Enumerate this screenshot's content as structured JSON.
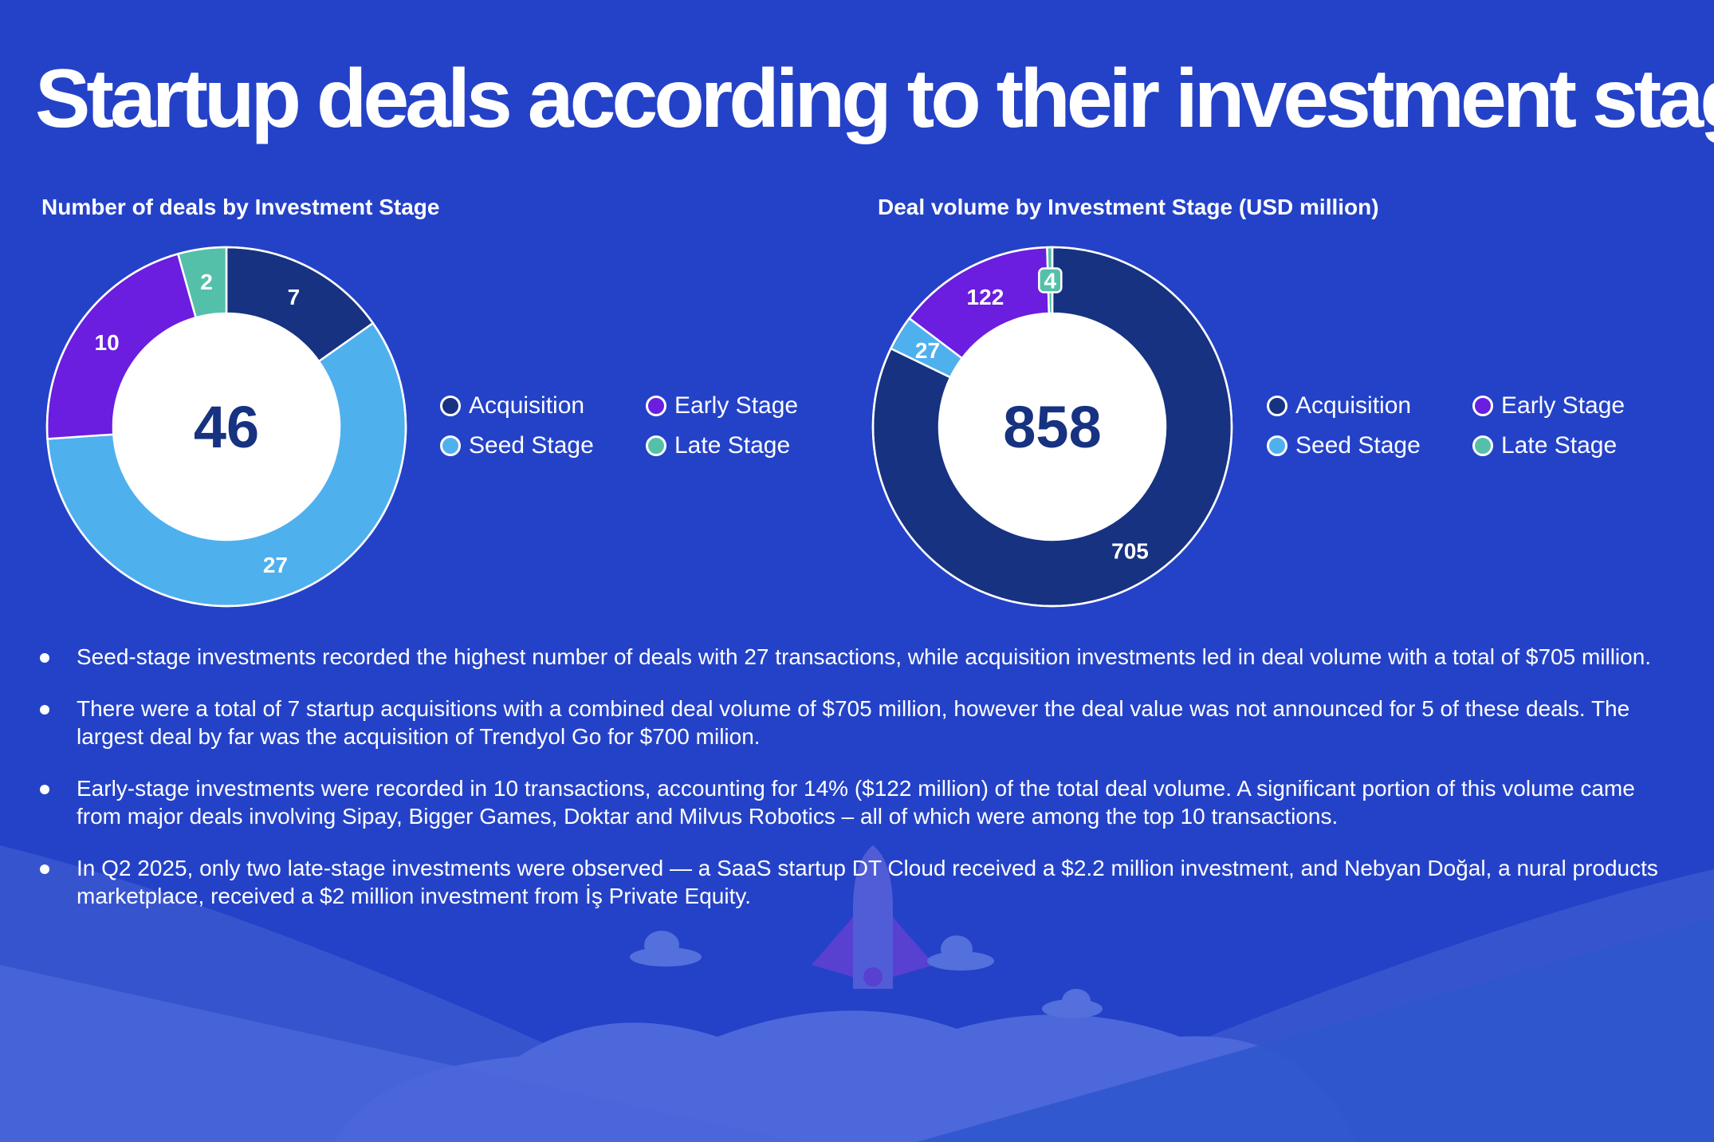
{
  "title": "Startup deals according to their investment stage",
  "colors": {
    "background": "#2442c8",
    "acquisition": "#163280",
    "seed_stage": "#4fb0ee",
    "early_stage": "#6b1de0",
    "late_stage": "#55c0aa",
    "text": "#ffffff",
    "center_number": "#163280"
  },
  "chart_data": [
    {
      "type": "pie",
      "variant": "donut",
      "title": "Number of deals by Investment Stage",
      "center_label": "46",
      "categories": [
        "Acquisition",
        "Seed Stage",
        "Early Stage",
        "Late Stage"
      ],
      "values": [
        7,
        27,
        10,
        2
      ],
      "value_labels": [
        "7",
        "27",
        "10",
        "2"
      ],
      "legend": [
        "Acquisition",
        "Early Stage",
        "Seed Stage",
        "Late Stage"
      ],
      "legend_placement": "right"
    },
    {
      "type": "pie",
      "variant": "donut",
      "title": "Deal volume by Investment Stage (USD million)",
      "center_label": "858",
      "categories": [
        "Acquisition",
        "Seed Stage",
        "Early Stage",
        "Late Stage"
      ],
      "values": [
        705,
        27,
        122,
        4
      ],
      "value_labels": [
        "705",
        "27",
        "122",
        "4"
      ],
      "legend": [
        "Acquisition",
        "Early Stage",
        "Seed Stage",
        "Late Stage"
      ],
      "legend_placement": "right"
    }
  ],
  "bullets": [
    "Seed-stage investments recorded the highest number of deals with 27 transactions, while acquisition investments led in deal volume with a total of $705 million.",
    "There were a total of 7 startup acquisitions with a combined deal volume of $705 million, however the deal value was not announced for 5 of these deals. The largest deal by far was the acquisition of Trendyol Go for $700 milion.",
    "Early-stage investments were recorded in 10 transactions, accounting for 14% ($122 million) of the total deal volume. A significant portion of this volume came from major deals involving Sipay, Bigger Games, Doktar and Milvus Robotics – all of which were among the top 10 transactions.",
    "In Q2 2025, only two late-stage investments were observed — a SaaS startup DT Cloud received a $2.2 million investment, and Nebyan Doğal, a nural products marketplace, received a $2 million investment from İş Private Equity."
  ]
}
